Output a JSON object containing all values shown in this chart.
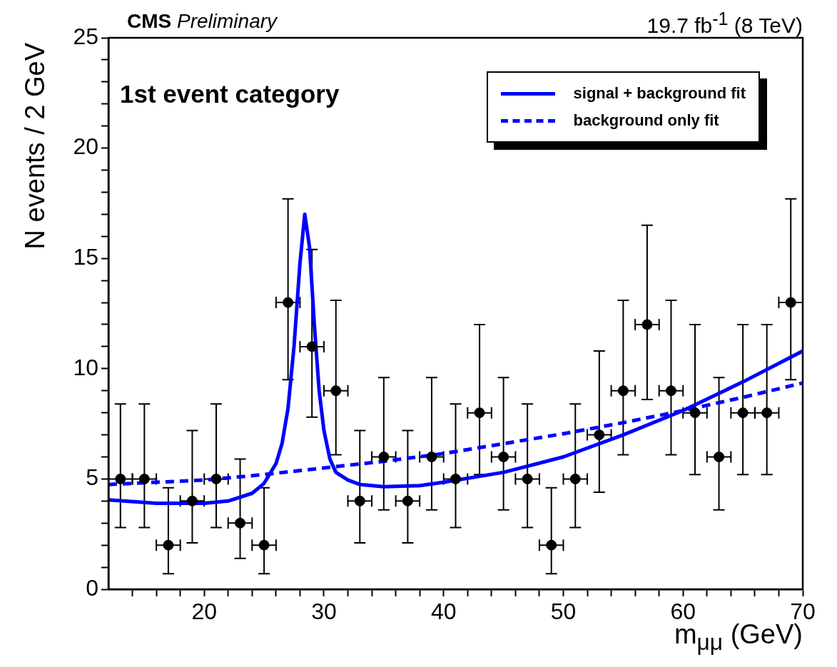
{
  "chart_data": {
    "type": "scatter",
    "title": "CMS",
    "subtitle": "Preliminary",
    "xlabel": "m$_{μμ}$ (GeV)",
    "ylabel": "N events / 2 GeV",
    "annotations": [
      "19.7 fb$^{-1}$ (8 TeV)",
      "1st event category"
    ],
    "xlim": [
      12,
      70
    ],
    "ylim": [
      0,
      25
    ],
    "xticks": [
      {
        "value": 14,
        "label": null
      },
      {
        "value": 16,
        "label": null
      },
      {
        "value": 18,
        "label": null
      },
      20,
      {
        "value": 22,
        "label": null
      },
      {
        "value": 24,
        "label": null
      },
      {
        "value": 26,
        "label": null
      },
      {
        "value": 28,
        "label": null
      },
      30,
      {
        "value": 32,
        "label": null
      },
      {
        "value": 34,
        "label": null
      },
      {
        "value": 36,
        "label": null
      },
      {
        "value": 38,
        "label": null
      },
      40,
      {
        "value": 42,
        "label": null
      },
      {
        "value": 44,
        "label": null
      },
      {
        "value": 46,
        "label": null
      },
      {
        "value": 48,
        "label": null
      },
      50,
      {
        "value": 52,
        "label": null
      },
      {
        "value": 54,
        "label": null
      },
      {
        "value": 56,
        "label": null
      },
      {
        "value": 58,
        "label": null
      },
      60,
      {
        "value": 62,
        "label": null
      },
      {
        "value": 64,
        "label": null
      },
      {
        "value": 66,
        "label": null
      },
      {
        "value": 68,
        "label": null
      },
      70
    ],
    "yticks": [
      0,
      {
        "value": 1,
        "label": null
      },
      {
        "value": 2,
        "label": null
      },
      {
        "value": 3,
        "label": null
      },
      {
        "value": 4,
        "label": null
      },
      5,
      {
        "value": 6,
        "label": null
      },
      {
        "value": 7,
        "label": null
      },
      {
        "value": 8,
        "label": null
      },
      {
        "value": 9,
        "label": null
      },
      10,
      {
        "value": 11,
        "label": null
      },
      {
        "value": 12,
        "label": null
      },
      {
        "value": 13,
        "label": null
      },
      {
        "value": 14,
        "label": null
      },
      15,
      {
        "value": 16,
        "label": null
      },
      {
        "value": 17,
        "label": null
      },
      {
        "value": 18,
        "label": null
      },
      {
        "value": 19,
        "label": null
      },
      20,
      {
        "value": 21,
        "label": null
      },
      {
        "value": 22,
        "label": null
      },
      {
        "value": 23,
        "label": null
      },
      {
        "value": 24,
        "label": null
      },
      25
    ],
    "grid": false,
    "legend": "top right",
    "series": [
      {
        "type": "scatter",
        "color": "#000000",
        "marker": "circle",
        "x": [
          13,
          15,
          17,
          19,
          21,
          23,
          25,
          27,
          29,
          31,
          33,
          35,
          37,
          39,
          41,
          43,
          45,
          47,
          49,
          51,
          53,
          55,
          57,
          59,
          61,
          63,
          65,
          67,
          69
        ],
        "values": [
          5,
          5,
          2,
          4,
          5,
          3,
          2,
          13,
          11,
          9,
          4,
          6,
          4,
          6,
          5,
          8,
          6,
          5,
          2,
          5,
          7,
          9,
          12,
          9,
          8,
          6,
          8,
          8,
          13
        ],
        "errors": [
          [
            2.8,
            8.4
          ],
          [
            2.8,
            8.4
          ],
          [
            0.7,
            4.6
          ],
          [
            2.1,
            7.2
          ],
          [
            2.8,
            8.4
          ],
          [
            1.4,
            5.9
          ],
          [
            0.7,
            4.6
          ],
          [
            9.5,
            17.7
          ],
          [
            7.8,
            15.4
          ],
          [
            6.1,
            13.1
          ],
          [
            2.1,
            7.2
          ],
          [
            3.6,
            9.6
          ],
          [
            2.1,
            7.2
          ],
          [
            3.6,
            9.6
          ],
          [
            2.8,
            8.4
          ],
          [
            5.2,
            12.0
          ],
          [
            3.6,
            9.6
          ],
          [
            2.8,
            8.4
          ],
          [
            0.7,
            4.6
          ],
          [
            2.8,
            8.4
          ],
          [
            4.4,
            10.8
          ],
          [
            6.1,
            13.1
          ],
          [
            8.6,
            16.5
          ],
          [
            6.1,
            13.1
          ],
          [
            5.2,
            12.0
          ],
          [
            3.6,
            9.6
          ],
          [
            5.2,
            12.0
          ],
          [
            5.2,
            12.0
          ],
          [
            9.5,
            17.7
          ]
        ],
        "xerrors": [
          1,
          1,
          1,
          1,
          1,
          1,
          1,
          1,
          1,
          1,
          1,
          1,
          1,
          1,
          1,
          1,
          1,
          1,
          1,
          1,
          1,
          1,
          1,
          1,
          1,
          1,
          1,
          1,
          1
        ]
      },
      {
        "type": "line",
        "name": "signal + background fit",
        "color": "#0000ff",
        "marker": "none",
        "line_style": "solid",
        "x": [
          12,
          16,
          20,
          22,
          24,
          25,
          26,
          26.5,
          27,
          27.5,
          28,
          28.4,
          28.8,
          29.2,
          29.6,
          30,
          30.5,
          31,
          32,
          33,
          35,
          38,
          40,
          45,
          50,
          55,
          60,
          65,
          70
        ],
        "values": [
          4.05,
          3.9,
          3.9,
          4.0,
          4.35,
          4.8,
          5.7,
          6.6,
          8.2,
          11,
          14.8,
          17.0,
          15.5,
          12,
          9,
          7.2,
          5.9,
          5.3,
          4.95,
          4.75,
          4.65,
          4.7,
          4.85,
          5.3,
          6.0,
          7.0,
          8.1,
          9.4,
          10.8
        ]
      },
      {
        "type": "line",
        "name": "background only fit",
        "color": "#0000ff",
        "marker": "none",
        "line_style": "dashed",
        "x": [
          12,
          20,
          25,
          30,
          35,
          40,
          45,
          50,
          55,
          60,
          65,
          70
        ],
        "values": [
          4.75,
          4.95,
          5.2,
          5.5,
          5.8,
          6.15,
          6.6,
          7.05,
          7.55,
          8.1,
          8.7,
          9.35
        ]
      }
    ]
  }
}
